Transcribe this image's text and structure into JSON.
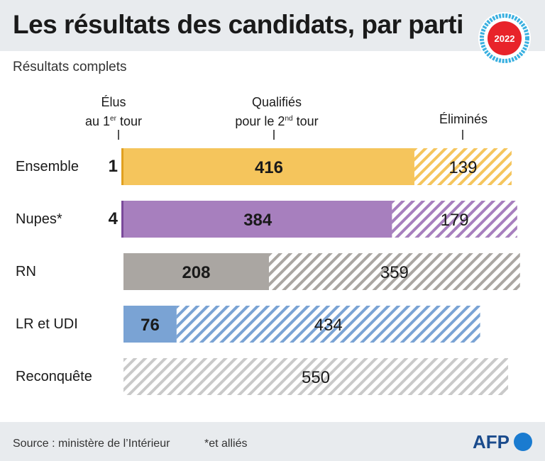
{
  "title": "Les résultats des candidats, par parti",
  "subtitle": "Résultats complets",
  "badge_year": "2022",
  "columns": {
    "elus_line1": "Élus",
    "elus_line2_pre": "au 1",
    "elus_sup": "er",
    "elus_line2_post": " tour",
    "qualifies_line1": "Qualifiés",
    "qualifies_line2_pre": "pour le 2",
    "qualifies_sup": "nd",
    "qualifies_line2_post": " tour",
    "elimines": "Éliminés"
  },
  "footer": {
    "source": "Source : ministère de l’Intérieur",
    "note": "*et alliés",
    "logo": "AFP"
  },
  "chart_data": {
    "type": "bar",
    "stacked": true,
    "orientation": "horizontal",
    "categories": [
      "Ensemble",
      "Nupes*",
      "RN",
      "LR et UDI",
      "Reconquête"
    ],
    "series": [
      {
        "name": "Élus au 1er tour",
        "values": [
          1,
          4,
          0,
          0,
          0
        ]
      },
      {
        "name": "Qualifiés pour le 2nd tour",
        "values": [
          416,
          384,
          208,
          76,
          0
        ]
      },
      {
        "name": "Éliminés",
        "values": [
          139,
          179,
          359,
          434,
          550
        ]
      }
    ],
    "colors": {
      "Ensemble": "#f5c55c",
      "Nupes*": "#a77fbe",
      "RN": "#aaa6a2",
      "LR et UDI": "#7aa3d4",
      "Reconquête": "#c9c9c9"
    },
    "elus_color": {
      "Ensemble": "#e0a020",
      "Nupes*": "#7a4a9a"
    }
  }
}
